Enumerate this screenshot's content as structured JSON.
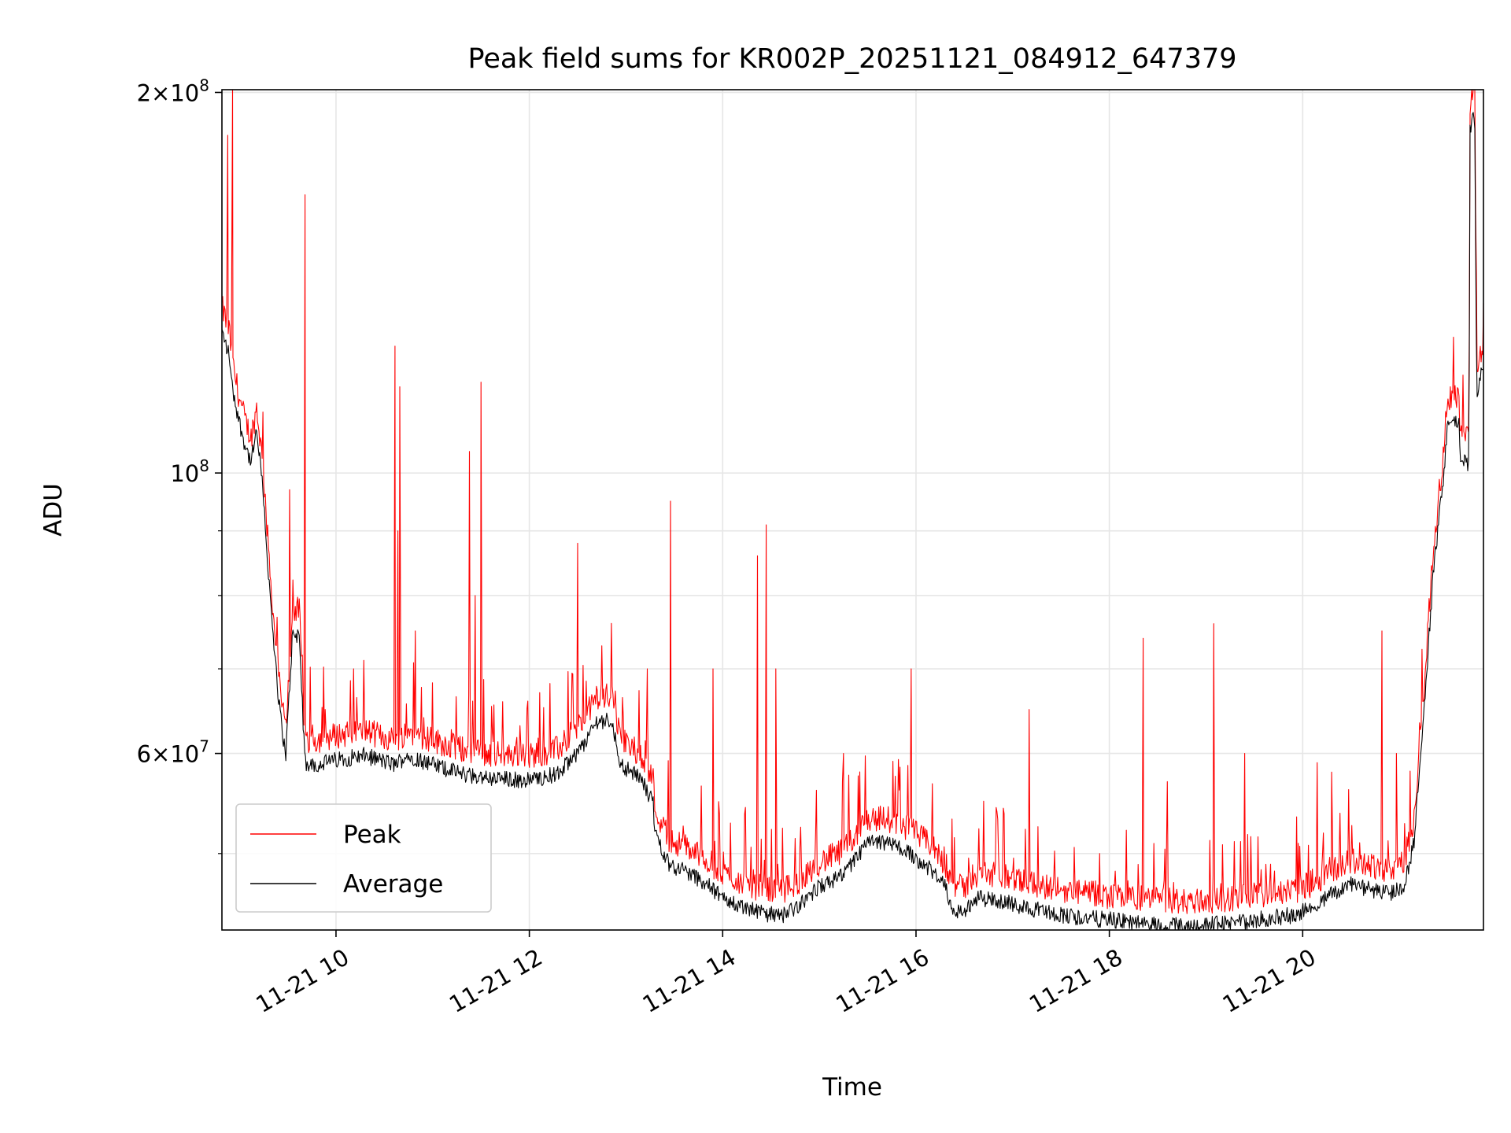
{
  "chart_data": {
    "type": "line",
    "title": "Peak field sums for KR002P_20251121_084912_647379",
    "xlabel": "Time",
    "ylabel": "ADU",
    "yscale": "log",
    "ylim": [
      43500000,
      201000000
    ],
    "xlim_hours": [
      8.82,
      21.87
    ],
    "x_ticks": [
      {
        "h": 10,
        "label": "11-21 10"
      },
      {
        "h": 12,
        "label": "11-21 12"
      },
      {
        "h": 14,
        "label": "11-21 14"
      },
      {
        "h": 16,
        "label": "11-21 16"
      },
      {
        "h": 18,
        "label": "11-21 18"
      },
      {
        "h": 20,
        "label": "11-21 20"
      }
    ],
    "y_major_ticks": [
      {
        "v": 60000000,
        "base": "6",
        "exp": "7"
      },
      {
        "v": 100000000,
        "base": "",
        "exp": "8"
      },
      {
        "v": 200000000,
        "base": "2",
        "exp": "8"
      }
    ],
    "y_minor_ticks": [
      50000000,
      70000000,
      80000000,
      90000000
    ],
    "grid": true,
    "legend_position": "lower-left",
    "series": [
      {
        "name": "Peak",
        "color": "#ff0000",
        "baseline": [
          [
            8.82,
            132000000
          ],
          [
            8.9,
            126000000
          ],
          [
            8.92,
            120000000
          ],
          [
            9.0,
            112000000
          ],
          [
            9.05,
            108000000
          ],
          [
            9.12,
            104000000
          ],
          [
            9.18,
            110000000
          ],
          [
            9.25,
            98000000
          ],
          [
            9.3,
            85000000
          ],
          [
            9.36,
            74000000
          ],
          [
            9.42,
            66000000
          ],
          [
            9.48,
            61000000
          ],
          [
            9.55,
            76000000
          ],
          [
            9.62,
            76000000
          ],
          [
            9.68,
            60000000
          ],
          [
            9.8,
            60000000
          ],
          [
            10.0,
            60500000
          ],
          [
            10.3,
            61000000
          ],
          [
            10.6,
            60000000
          ],
          [
            10.75,
            61000000
          ],
          [
            11.0,
            60000000
          ],
          [
            11.3,
            59000000
          ],
          [
            11.6,
            58500000
          ],
          [
            12.0,
            58300000
          ],
          [
            12.3,
            59000000
          ],
          [
            12.55,
            62000000
          ],
          [
            12.7,
            65000000
          ],
          [
            12.85,
            65000000
          ],
          [
            12.95,
            60000000
          ],
          [
            13.15,
            58500000
          ],
          [
            13.28,
            56000000
          ],
          [
            13.3,
            53000000
          ],
          [
            13.45,
            50000000
          ],
          [
            13.6,
            49500000
          ],
          [
            13.8,
            48500000
          ],
          [
            14.0,
            47000000
          ],
          [
            14.3,
            46000000
          ],
          [
            14.6,
            45500000
          ],
          [
            14.8,
            46500000
          ],
          [
            15.0,
            48000000
          ],
          [
            15.25,
            49000000
          ],
          [
            15.5,
            52000000
          ],
          [
            15.7,
            52000000
          ],
          [
            15.95,
            51000000
          ],
          [
            16.15,
            49500000
          ],
          [
            16.3,
            48000000
          ],
          [
            16.4,
            46000000
          ],
          [
            16.5,
            45800000
          ],
          [
            16.6,
            47000000
          ],
          [
            16.8,
            47000000
          ],
          [
            17.0,
            46500000
          ],
          [
            17.3,
            46000000
          ],
          [
            17.6,
            45500000
          ],
          [
            18.0,
            45200000
          ],
          [
            18.4,
            44900000
          ],
          [
            18.8,
            44700000
          ],
          [
            19.2,
            44900000
          ],
          [
            19.6,
            45300000
          ],
          [
            19.9,
            45600000
          ],
          [
            20.1,
            46200000
          ],
          [
            20.3,
            47400000
          ],
          [
            20.5,
            48200000
          ],
          [
            20.7,
            47800000
          ],
          [
            20.9,
            47400000
          ],
          [
            21.05,
            48200000
          ],
          [
            21.15,
            52000000
          ],
          [
            21.25,
            65000000
          ],
          [
            21.35,
            85000000
          ],
          [
            21.45,
            100000000
          ],
          [
            21.5,
            112000000
          ],
          [
            21.62,
            112000000
          ],
          [
            21.63,
            104000000
          ],
          [
            21.72,
            104000000
          ],
          [
            21.73,
            192000000
          ],
          [
            21.78,
            195000000
          ],
          [
            21.8,
            118000000
          ],
          [
            21.87,
            124000000
          ]
        ],
        "spikes": [
          [
            8.88,
            185000000
          ],
          [
            8.93,
            201000000
          ],
          [
            9.68,
            166000000
          ],
          [
            9.52,
            97000000
          ],
          [
            10.61,
            126000000
          ],
          [
            10.66,
            117000000
          ],
          [
            10.64,
            90000000
          ],
          [
            10.82,
            75000000
          ],
          [
            11.38,
            104000000
          ],
          [
            11.5,
            118000000
          ],
          [
            11.44,
            80000000
          ],
          [
            12.5,
            88000000
          ],
          [
            12.75,
            73000000
          ],
          [
            13.22,
            70000000
          ],
          [
            13.46,
            95000000
          ],
          [
            13.9,
            70000000
          ],
          [
            14.36,
            86000000
          ],
          [
            14.45,
            91000000
          ],
          [
            14.55,
            70000000
          ],
          [
            15.25,
            60000000
          ],
          [
            15.95,
            70000000
          ],
          [
            16.7,
            55000000
          ],
          [
            17.17,
            65000000
          ],
          [
            17.9,
            50000000
          ],
          [
            18.35,
            74000000
          ],
          [
            18.6,
            57000000
          ],
          [
            19.08,
            76000000
          ],
          [
            19.4,
            60000000
          ],
          [
            20.15,
            59000000
          ],
          [
            20.3,
            58000000
          ],
          [
            20.82,
            75000000
          ],
          [
            20.97,
            60000000
          ]
        ]
      },
      {
        "name": "Average",
        "color": "#000000"
      }
    ]
  }
}
